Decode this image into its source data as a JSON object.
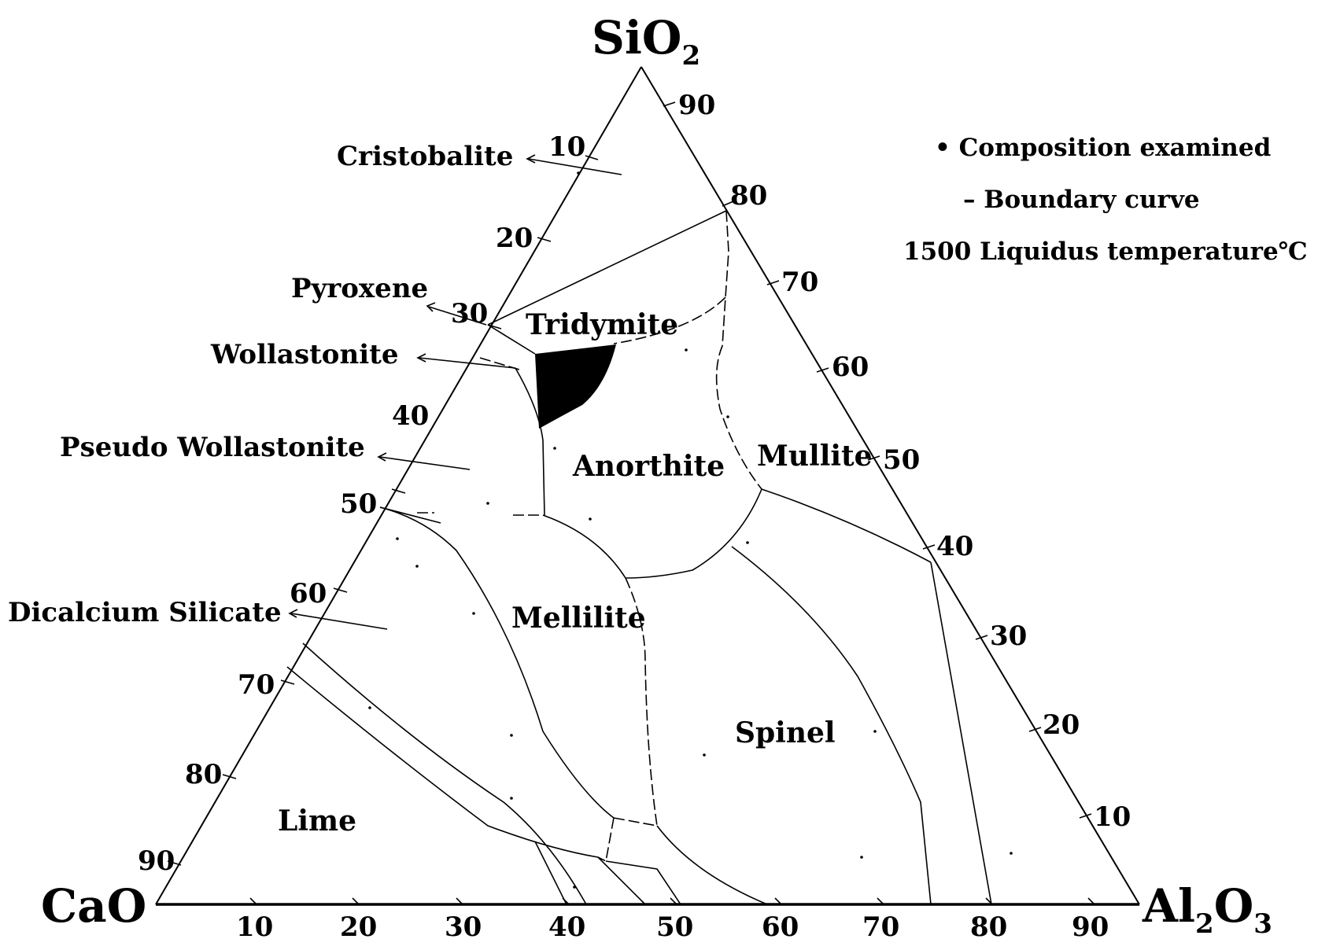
{
  "vertices": {
    "top": {
      "main": "SiO",
      "sub": "2",
      "tail": ""
    },
    "left": {
      "main": "CaO",
      "sub": "",
      "tail": ""
    },
    "right": {
      "main": "Al",
      "sub": "2",
      "tail": "O",
      "sub2": "3"
    }
  },
  "ticks": {
    "left_edge": [
      "10",
      "20",
      "30",
      "40",
      "50",
      "60",
      "70",
      "80",
      "90"
    ],
    "right_edge": [
      "90",
      "80",
      "70",
      "60",
      "50",
      "40",
      "30",
      "20",
      "10"
    ],
    "bottom_edge": [
      "10",
      "20",
      "30",
      "40",
      "50",
      "60",
      "70",
      "80",
      "90"
    ]
  },
  "regions": {
    "tridymite": "Tridymite",
    "anorthite": "Anorthite",
    "mullite": "Mullite",
    "mellilite": "Mellilite",
    "spinel": "Spinel",
    "lime": "Lime"
  },
  "phases": {
    "cristobalite": "Cristobalite",
    "pyroxene": "Pyroxene",
    "wollastonite": "Wollastonite",
    "pseudo_wollastonite": "Pseudo Wollastonite",
    "dicalcium_silicate": "Dicalcium Silicate"
  },
  "legend": {
    "composition": "• Composition examined",
    "boundary": "– Boundary curve",
    "liquidus": "1500 Liquidus temperature℃"
  }
}
